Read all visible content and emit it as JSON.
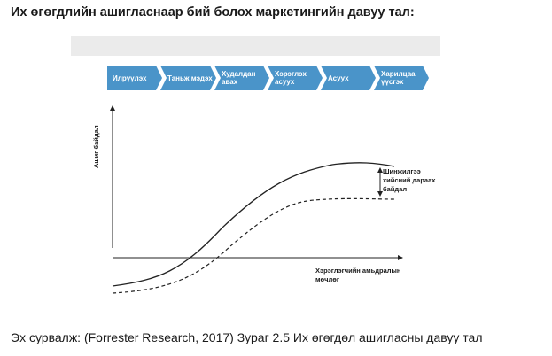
{
  "title": "Их өгөгдлийн ашигласнаар бий болох маркетингийн давуу тал:",
  "stages": [
    {
      "label": "Илрүүлэх"
    },
    {
      "label": "Таньж мэдэх"
    },
    {
      "label": "Худалдан\nавах"
    },
    {
      "label": "Хэрэглэх\nасуух"
    },
    {
      "label": "Асуух"
    },
    {
      "label": "Харилцаа\nүүсгэх"
    }
  ],
  "y_axis_label": "Ашиг байдал",
  "x_axis_label": "Хэрэглэгчийн амьдралын\nмөчлөг",
  "benefit_label": "Шинжилгээ\nхийсний дараах\nбайдал",
  "caption": "Эх сурвалж: (Forrester Research, 2017) Зураг 2.5 Их өгөгдөл ашигласны давуу тал",
  "colors": {
    "stage_fill": "#4a94c9",
    "stage_fill_light": "#63a9d8",
    "line": "#222222",
    "band": "#ebebeb"
  }
}
